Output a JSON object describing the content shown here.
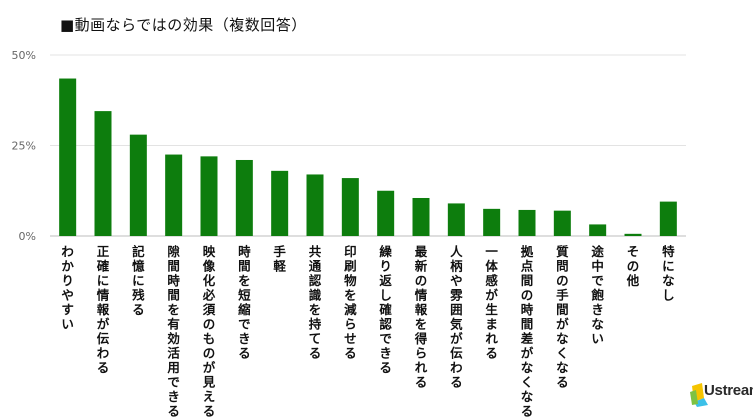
{
  "chart_data": {
    "type": "bar",
    "title": "■動画ならではの効果（複数回答）",
    "categories": [
      "わかりやすい",
      "正確に情報が伝わる",
      "記憶に残る",
      "隙間時間を有効活用できる",
      "映像化必須のものが見える",
      "時間を短縮できる",
      "手軽",
      "共通認識を持てる",
      "印刷物を減らせる",
      "繰り返し確認できる",
      "最新の情報を得られる",
      "人柄や雰囲気が伝わる",
      "一体感が生まれる",
      "拠点間の時間差がなくなる",
      "質問の手間がなくなる",
      "途中で飽きない",
      "その他",
      "特になし"
    ],
    "values": [
      43.5,
      34.5,
      28,
      22.5,
      22,
      21,
      18,
      17,
      16,
      12.5,
      10.5,
      9,
      7.5,
      7.2,
      7,
      3.2,
      0.6,
      9.5
    ],
    "yticks": [
      "0%",
      "25%",
      "50%"
    ],
    "ylim": [
      0,
      50
    ],
    "bar_color": "#0d7d0d",
    "grid": true
  },
  "logo": {
    "text": "Ustream",
    "colors": [
      "#f5c400",
      "#3cc0e8",
      "#7dc242"
    ]
  }
}
